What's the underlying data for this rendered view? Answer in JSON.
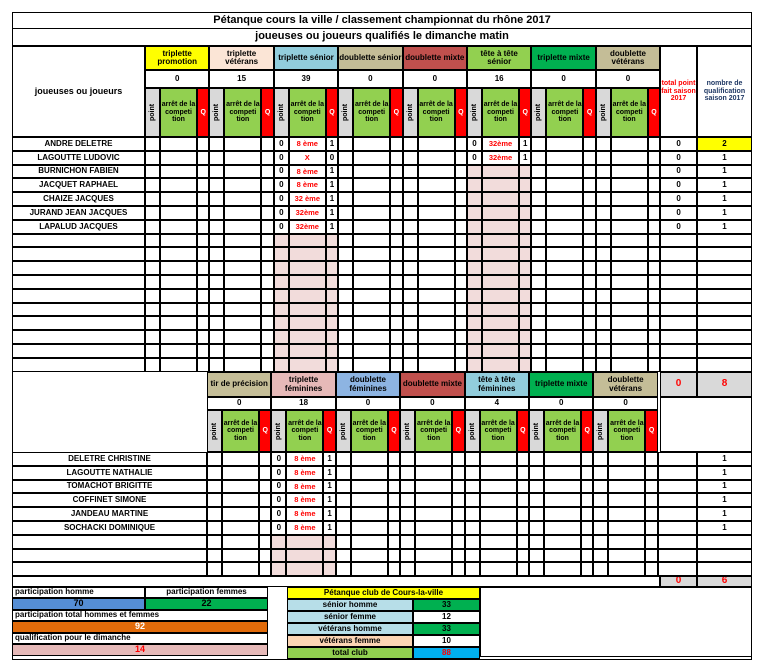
{
  "title": "Pétanque cours la ville / classement championnat du rhône 2017",
  "subtitle": "joueuses ou joueurs qualifiés le dimanche matin",
  "men": {
    "row_header": "joueuses ou joueurs",
    "sub_headers": [
      "point",
      "arrêt de la competi tion",
      "Q"
    ],
    "total_header": "total point fait saison 2017",
    "qual_header": "nombre de qualification saison 2017",
    "categories": [
      {
        "name": "triplette promotion",
        "count": 0,
        "color": "#ffff00"
      },
      {
        "name": "triplette vétérans",
        "count": 15,
        "color": "#fbe5d6"
      },
      {
        "name": "triplette sénior",
        "count": 39,
        "color": "#92cddc"
      },
      {
        "name": "doublette sénior",
        "count": 0,
        "color": "#c4bd97"
      },
      {
        "name": "doublette mixte",
        "count": 0,
        "color": "#c0504d"
      },
      {
        "name": "tête à tête sénior",
        "count": 16,
        "color": "#92d050"
      },
      {
        "name": "triplette mixte",
        "count": 0,
        "color": "#00b050"
      },
      {
        "name": "doublette vétérans",
        "count": 0,
        "color": "#c4bd97"
      }
    ],
    "players": [
      {
        "name": "ANDRE DELETRE",
        "cells": [
          null,
          null,
          {
            "point": 0,
            "stop": "8 ème",
            "q": 1
          },
          null,
          null,
          {
            "point": 0,
            "stop": "32ème",
            "q": 1
          },
          null,
          null
        ],
        "total": 0,
        "qualifications": 2
      },
      {
        "name": "LAGOUTTE LUDOVIC",
        "cells": [
          null,
          null,
          {
            "point": 0,
            "stop": "X",
            "q": 0
          },
          null,
          null,
          {
            "point": 0,
            "stop": "32ème",
            "q": 1
          },
          null,
          null
        ],
        "total": 0,
        "qualifications": 1
      },
      {
        "name": "BURNICHON FABIEN",
        "cells": [
          null,
          null,
          {
            "point": 0,
            "stop": "8 ème",
            "q": 1
          },
          null,
          null,
          null,
          null,
          null
        ],
        "total": 0,
        "qualifications": 1
      },
      {
        "name": "JACQUET RAPHAEL",
        "cells": [
          null,
          null,
          {
            "point": 0,
            "stop": "8 ème",
            "q": 1
          },
          null,
          null,
          null,
          null,
          null
        ],
        "total": 0,
        "qualifications": 1
      },
      {
        "name": "CHAIZE JACQUES",
        "cells": [
          null,
          null,
          {
            "point": 0,
            "stop": "32 ème",
            "q": 1
          },
          null,
          null,
          null,
          null,
          null
        ],
        "total": 0,
        "qualifications": 1
      },
      {
        "name": "JURAND JEAN JACQUES",
        "cells": [
          null,
          null,
          {
            "point": 0,
            "stop": "32ème",
            "q": 1
          },
          null,
          null,
          null,
          null,
          null
        ],
        "total": 0,
        "qualifications": 1
      },
      {
        "name": "LAPALUD JACQUES",
        "cells": [
          null,
          null,
          {
            "point": 0,
            "stop": "32ème",
            "q": 1
          },
          null,
          null,
          null,
          null,
          null
        ],
        "total": 0,
        "qualifications": 1
      }
    ],
    "totals": {
      "points": 0,
      "qualifications": 8
    }
  },
  "women": {
    "sub_headers": [
      "point",
      "arrêt de la competi tion",
      "Q"
    ],
    "categories": [
      {
        "name": "tir de précision",
        "count": 0,
        "color": "#c4bd97"
      },
      {
        "name": "triplette féminines",
        "count": 18,
        "color": "#e6b9b8"
      },
      {
        "name": "doublette féminines",
        "count": 0,
        "color": "#8db4e2"
      },
      {
        "name": "doublette mixte",
        "count": 0,
        "color": "#c0504d"
      },
      {
        "name": "tête à tête féminines",
        "count": 4,
        "color": "#92cddc"
      },
      {
        "name": "triplette mixte",
        "count": 0,
        "color": "#00b050"
      },
      {
        "name": "doublette vétérans",
        "count": 0,
        "color": "#c4bd97"
      }
    ],
    "players": [
      {
        "name": "DELETRE CHRISTINE",
        "cells": [
          null,
          {
            "point": 0,
            "stop": "8 ème",
            "q": 1
          },
          null,
          null,
          null,
          null,
          null
        ],
        "qualifications": 1
      },
      {
        "name": "LAGOUTTE NATHALIE",
        "cells": [
          null,
          {
            "point": 0,
            "stop": "8 ème",
            "q": 1
          },
          null,
          null,
          null,
          null,
          null
        ],
        "qualifications": 1
      },
      {
        "name": "TOMACHOT BRIGITTE",
        "cells": [
          null,
          {
            "point": 0,
            "stop": "8 ème",
            "q": 1
          },
          null,
          null,
          null,
          null,
          null
        ],
        "qualifications": 1
      },
      {
        "name": "COFFINET SIMONE",
        "cells": [
          null,
          {
            "point": 0,
            "stop": "8 ème",
            "q": 1
          },
          null,
          null,
          null,
          null,
          null
        ],
        "qualifications": 1
      },
      {
        "name": "JANDEAU MARTINE",
        "cells": [
          null,
          {
            "point": 0,
            "stop": "8 ème",
            "q": 1
          },
          null,
          null,
          null,
          null,
          null
        ],
        "qualifications": 1
      },
      {
        "name": "SOCHACKI DOMINIQUE",
        "cells": [
          null,
          {
            "point": 0,
            "stop": "8 ème",
            "q": 1
          },
          null,
          null,
          null,
          null,
          null
        ],
        "qualifications": 1
      }
    ],
    "totals": {
      "points": 0,
      "qualifications": 6
    }
  },
  "summary": {
    "participation_men": {
      "label": "participation homme",
      "value": 70
    },
    "participation_women": {
      "label": "participation femmes",
      "value": 22
    },
    "participation_total": {
      "label": "participation total hommes et femmes",
      "value": 92
    },
    "qualification": {
      "label": "qualification pour le dimanche",
      "value": 14
    }
  },
  "club": {
    "title": "Pétanque club de Cours-la-ville",
    "rows": [
      {
        "label": "sénior homme",
        "value": 33,
        "label_color": "#b7dee8",
        "value_color": "#00b050"
      },
      {
        "label": "sénior femme",
        "value": 12,
        "label_color": "#b7dee8",
        "value_color": "#ffffff"
      },
      {
        "label": "vétérans homme",
        "value": 33,
        "label_color": "#b7dee8",
        "value_color": "#00b050"
      },
      {
        "label": "vétérans femme",
        "value": 10,
        "label_color": "#fcd5b4",
        "value_color": "#ffffff"
      },
      {
        "label": "total club",
        "value": 88,
        "label_color": "#92d050",
        "value_color": "#00b0f0"
      }
    ]
  }
}
